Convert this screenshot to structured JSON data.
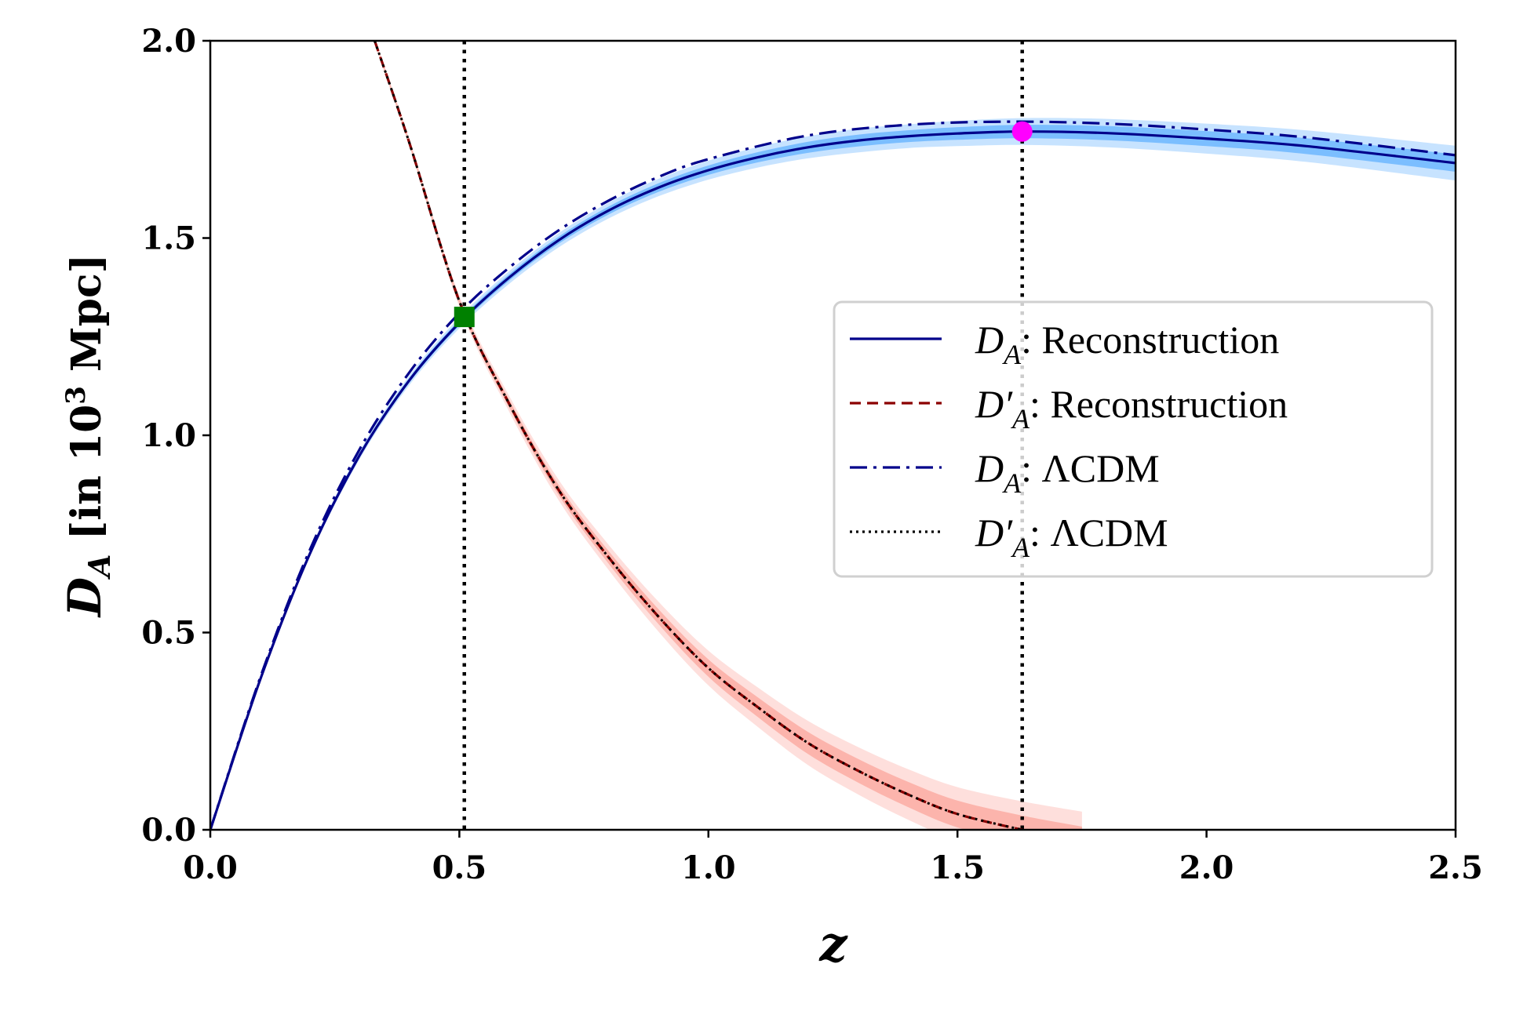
{
  "chart_data": {
    "type": "line",
    "xlabel": "z",
    "ylabel": {
      "symbol": "D",
      "sub": "A",
      "pre": " [in 10",
      "sup": "3",
      "post": " Mpc]"
    },
    "xlim": [
      0,
      2.5
    ],
    "ylim": [
      0,
      2.0
    ],
    "xticks": [
      "0.0",
      "0.5",
      "1.0",
      "1.5",
      "2.0",
      "2.5"
    ],
    "yticks": [
      "0.0",
      "0.5",
      "1.0",
      "1.5",
      "2.0"
    ],
    "xtick_values": [
      0,
      0.5,
      1.0,
      1.5,
      2.0,
      2.5
    ],
    "ytick_values": [
      0,
      0.5,
      1.0,
      1.5,
      2.0
    ],
    "grid": false,
    "legend_position": "center-right",
    "series": [
      {
        "name": "D_A: Reconstruction",
        "symbol": "D",
        "prime": "",
        "sub": "A",
        "label": "Reconstruction",
        "style": "solid",
        "color": "#00008b",
        "band_color": "#1e90ff",
        "x": [
          0,
          0.1,
          0.2,
          0.3,
          0.4,
          0.5,
          0.6,
          0.7,
          0.8,
          0.9,
          1.0,
          1.1,
          1.2,
          1.3,
          1.4,
          1.5,
          1.63,
          1.8,
          2.0,
          2.2,
          2.5
        ],
        "y": [
          0,
          0.38,
          0.7,
          0.95,
          1.14,
          1.285,
          1.4,
          1.495,
          1.57,
          1.628,
          1.672,
          1.705,
          1.73,
          1.747,
          1.758,
          1.765,
          1.77,
          1.766,
          1.752,
          1.733,
          1.69
        ],
        "sigma": [
          0,
          0.002,
          0.004,
          0.005,
          0.006,
          0.007,
          0.008,
          0.009,
          0.01,
          0.011,
          0.012,
          0.013,
          0.014,
          0.015,
          0.015,
          0.016,
          0.017,
          0.018,
          0.019,
          0.02,
          0.022
        ]
      },
      {
        "name": "D'_A: Reconstruction",
        "symbol": "D",
        "prime": "′",
        "sub": "A",
        "label": "Reconstruction",
        "style": "dashed",
        "color": "#8b0000",
        "band_color": "#fa8072",
        "x": [
          0.33,
          0.4,
          0.5,
          0.6,
          0.7,
          0.8,
          0.9,
          1.0,
          1.1,
          1.2,
          1.3,
          1.4,
          1.5,
          1.63,
          1.75
        ],
        "y": [
          2.0,
          1.74,
          1.34,
          1.08,
          0.86,
          0.69,
          0.54,
          0.41,
          0.31,
          0.22,
          0.15,
          0.09,
          0.04,
          0.0,
          -0.03
        ],
        "sigma": [
          0.004,
          0.005,
          0.007,
          0.01,
          0.013,
          0.016,
          0.019,
          0.022,
          0.025,
          0.028,
          0.03,
          0.032,
          0.034,
          0.036,
          0.038
        ]
      },
      {
        "name": "D_A: ΛCDM",
        "symbol": "D",
        "prime": "",
        "sub": "A",
        "label": "ΛCDM",
        "style": "dashdot",
        "color": "#00008b",
        "x": [
          0,
          0.1,
          0.2,
          0.3,
          0.4,
          0.5,
          0.6,
          0.7,
          0.8,
          0.9,
          1.0,
          1.2,
          1.4,
          1.6,
          1.8,
          2.0,
          2.2,
          2.5
        ],
        "y": [
          0,
          0.385,
          0.71,
          0.965,
          1.16,
          1.31,
          1.425,
          1.52,
          1.595,
          1.655,
          1.7,
          1.76,
          1.787,
          1.795,
          1.79,
          1.775,
          1.755,
          1.71
        ]
      },
      {
        "name": "D'_A: ΛCDM",
        "symbol": "D",
        "prime": "′",
        "sub": "A",
        "label": "ΛCDM",
        "style": "dotted",
        "color": "#000000",
        "x": [
          0.33,
          0.4,
          0.5,
          0.6,
          0.7,
          0.8,
          0.9,
          1.0,
          1.1,
          1.2,
          1.3,
          1.4,
          1.5,
          1.63
        ],
        "y": [
          2.0,
          1.74,
          1.34,
          1.08,
          0.86,
          0.69,
          0.54,
          0.41,
          0.31,
          0.22,
          0.15,
          0.09,
          0.04,
          0.0
        ]
      }
    ],
    "vertical_lines": [
      0.51,
      1.63
    ],
    "markers": [
      {
        "name": "crossing-point",
        "shape": "square",
        "x": 0.51,
        "y": 1.3,
        "color": "#008000"
      },
      {
        "name": "peak-point",
        "shape": "circle",
        "x": 1.63,
        "y": 1.77,
        "color": "#ff00ff"
      }
    ]
  }
}
